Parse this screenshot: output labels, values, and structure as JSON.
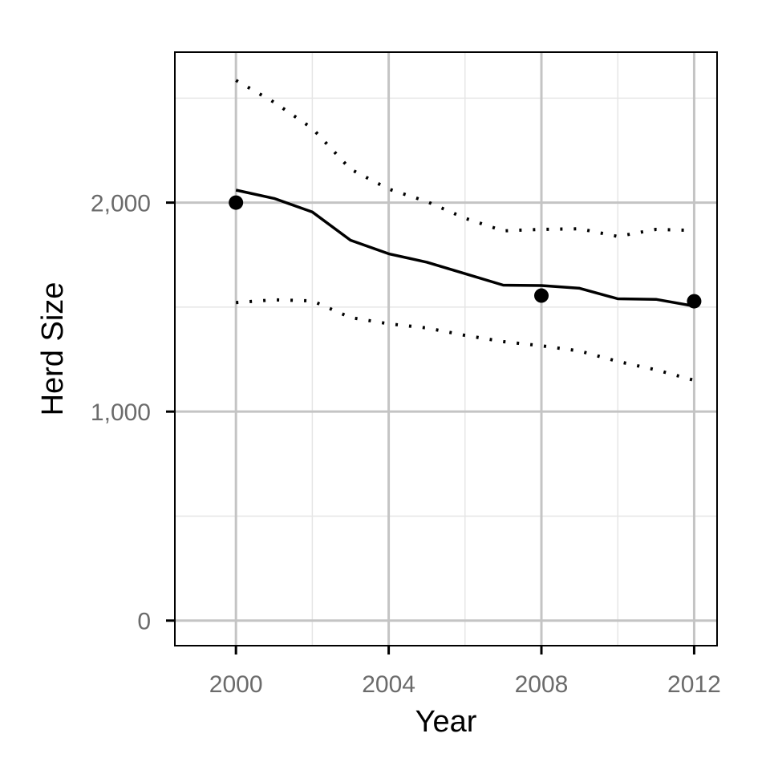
{
  "chart_data": {
    "type": "line",
    "title": "",
    "xlabel": "Year",
    "ylabel": "Herd Size",
    "xlim": [
      1998.4,
      2012.6
    ],
    "ylim": [
      -120,
      2720
    ],
    "x_ticks": [
      2000,
      2004,
      2008,
      2012
    ],
    "x_tick_labels": [
      "2000",
      "2004",
      "2008",
      "2012"
    ],
    "y_ticks": [
      0,
      1000,
      2000
    ],
    "y_tick_labels": [
      "0",
      "1,000",
      "2,000"
    ],
    "grid": true,
    "legend": "none",
    "series": [
      {
        "style": "solid",
        "x": [
          2000,
          2001,
          2002,
          2003,
          2004,
          2005,
          2006,
          2007,
          2008,
          2009,
          2010,
          2011,
          2012
        ],
        "values": [
          2060,
          2020,
          1955,
          1820,
          1755,
          1715,
          1660,
          1605,
          1603,
          1590,
          1540,
          1537,
          1505
        ]
      },
      {
        "style": "dotted",
        "x": [
          2000,
          2001,
          2002,
          2003,
          2004,
          2005,
          2006,
          2007,
          2008,
          2009,
          2010,
          2011,
          2012
        ],
        "values": [
          2585,
          2480,
          2355,
          2160,
          2065,
          2005,
          1925,
          1865,
          1872,
          1875,
          1838,
          1872,
          1867
        ]
      },
      {
        "style": "dotted",
        "x": [
          2000,
          2001,
          2002,
          2003,
          2004,
          2005,
          2006,
          2007,
          2008,
          2009,
          2010,
          2011,
          2012
        ],
        "values": [
          1522,
          1535,
          1530,
          1450,
          1420,
          1400,
          1365,
          1335,
          1315,
          1290,
          1240,
          1200,
          1150
        ]
      },
      {
        "style": "points",
        "x": [
          2000,
          2008,
          2012
        ],
        "values": [
          2000,
          1555,
          1528
        ]
      }
    ],
    "colors": {
      "line": "#000000",
      "grid_major": "#c4c4c4",
      "grid_minor": "#e6e6e6",
      "tick_label": "#6b6b6b",
      "axis_title": "#000000"
    }
  }
}
